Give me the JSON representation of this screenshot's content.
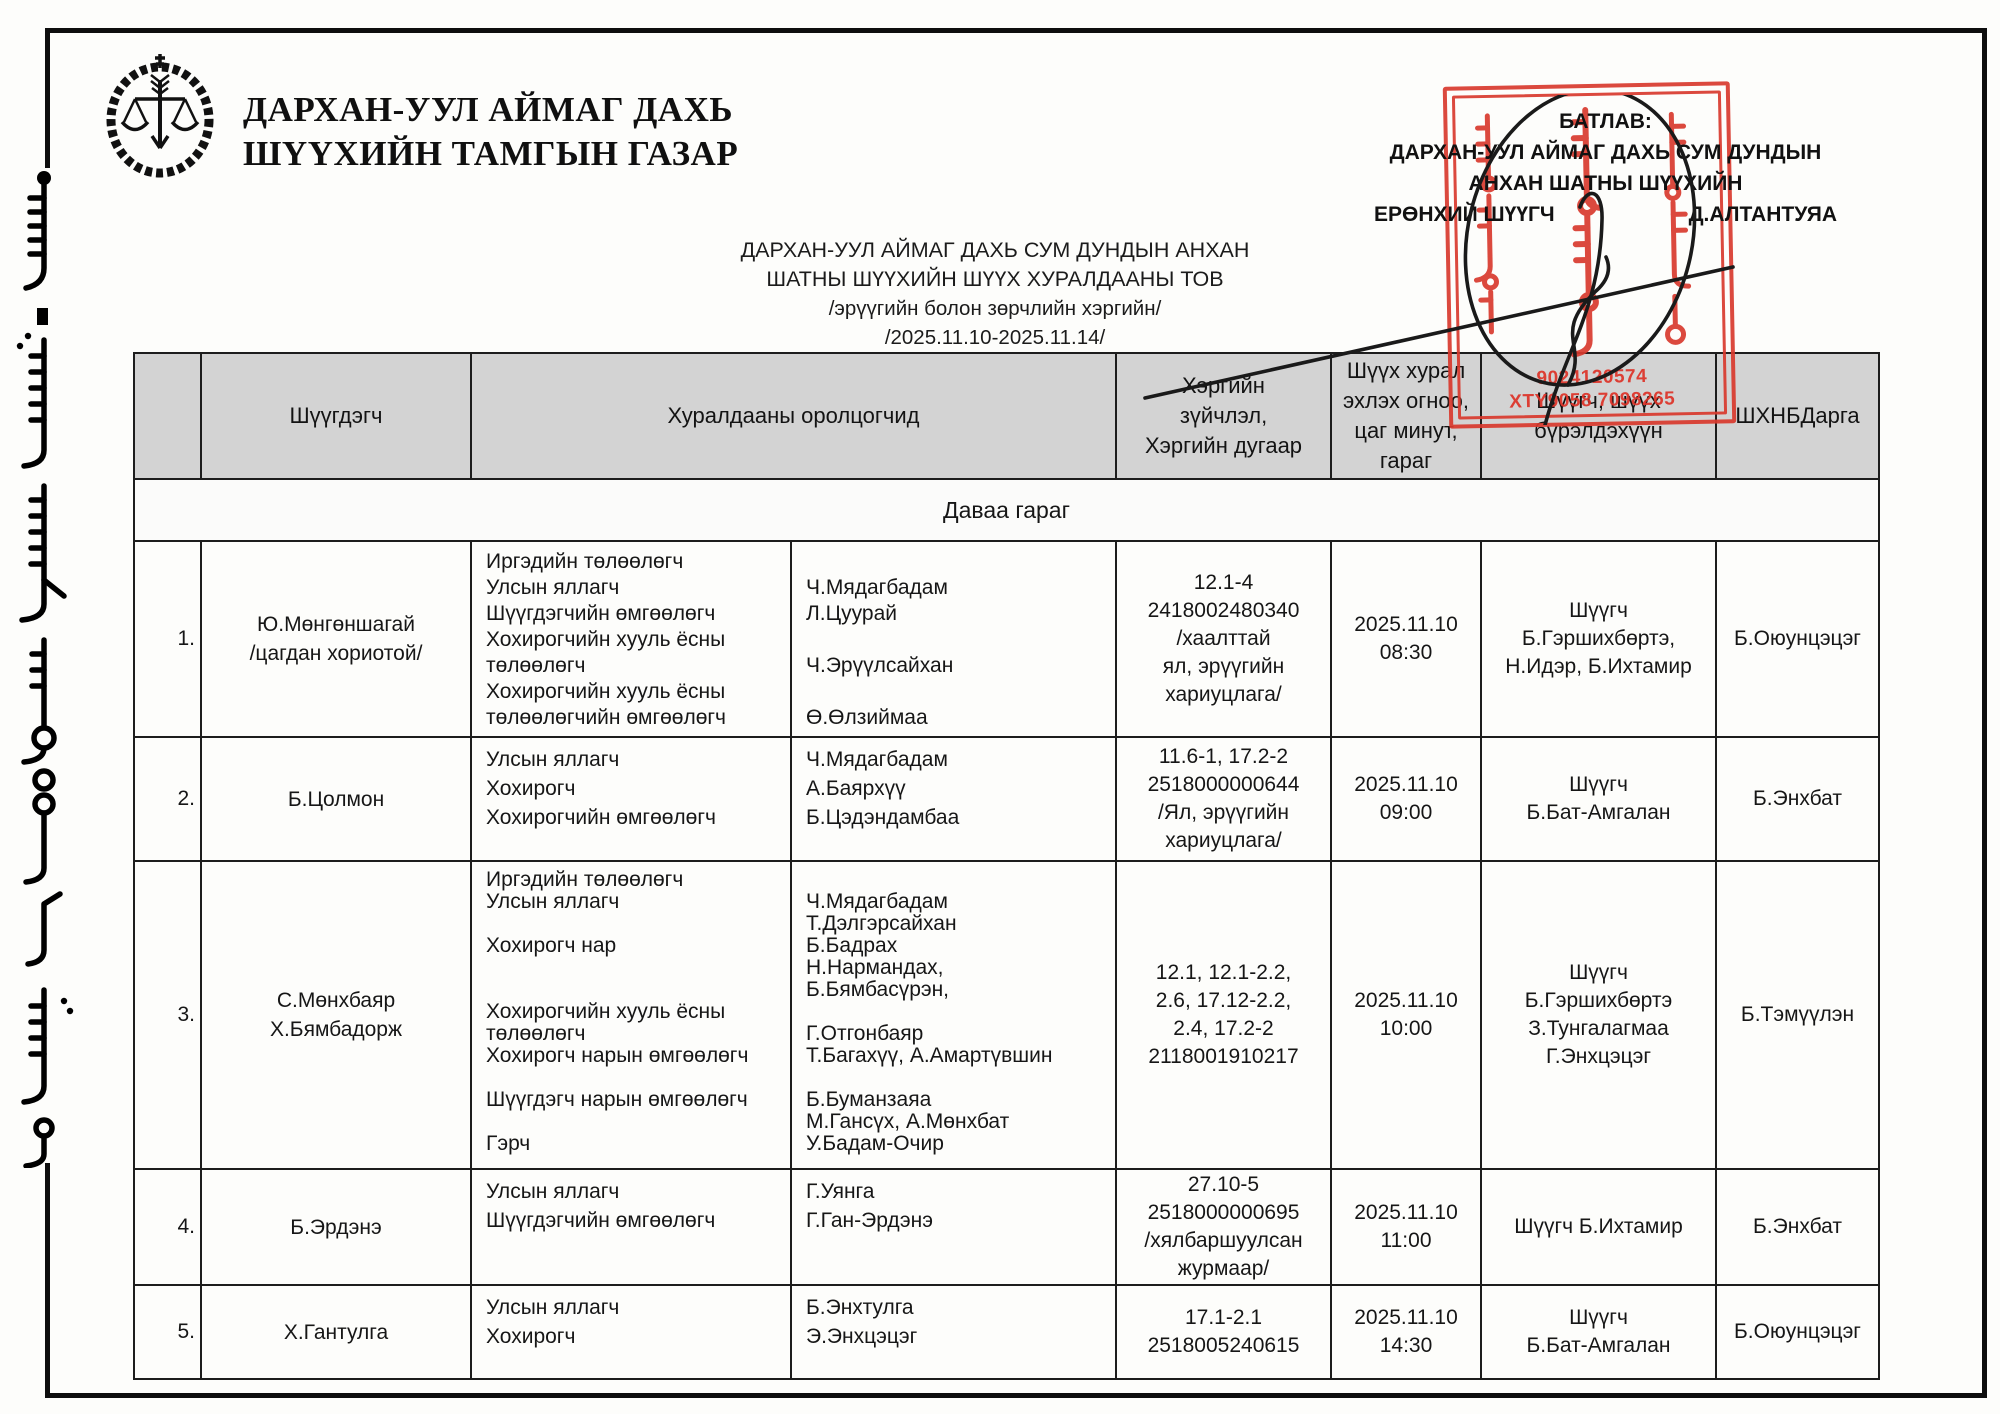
{
  "org": {
    "title": "ДАРХАН-УУЛ АЙМАГ ДАХЬ\nШҮҮХИЙН ТАМГЫН ГАЗАР"
  },
  "approval": {
    "label": "БАТЛАВ:",
    "line1": "ДАРХАН-УУЛ АЙМАГ ДАХЬ СУМ ДУНДЫН",
    "line2": "АНХАН ШАТНЫ ШҮҮХИЙН",
    "role": "ЕРӨНХИЙ ШҮҮГЧ",
    "name": "Д.АЛТАНТУЯА"
  },
  "stamp": {
    "numbers": "9024120574\nXTY9058   7098265",
    "color": "#d93a2e"
  },
  "doc_title": {
    "line1": "ДАРХАН-УУЛ АЙМАГ ДАХЬ СУМ ДУНДЫН АНХАН",
    "line2": "ШАТНЫ ШҮҮХИЙН ШҮҮХ ХУРАЛДААНЫ ТОВ",
    "line3": "/эрүүгийн болон зөрчлийн хэргийн/",
    "line4": "/2025.11.10-2025.11.14/"
  },
  "table": {
    "headers": {
      "no": "",
      "defendant": "Шүүгдэгч",
      "participants": "Хуралдааны оролцогчид",
      "case": "Хэргийн\nзүйчлэл,\nХэргийн дугаар",
      "datetime": "Шүүх хурал\nэхлэх огноо,\nцаг минут,\nгараг",
      "judges": "Шүүгч, шүүх\nбүрэлдэхүүн",
      "chief": "ШХНБДарга"
    },
    "day_band": "Даваа гараг",
    "rows": [
      {
        "no": "1.",
        "defendant": "Ю.Мөнгөншагай\n/цагдан хориотой/",
        "roles": "Иргэдийн төлөөлөгч\nУлсын яллагч\nШүүгдэгчийн өмгөөлөгч\nХохирогчийн хууль ёсны\nтөлөөлөгч\nХохирогчийн хууль ёсны\nтөлөөлөгчийн өмгөөлөгч",
        "names": "\nЧ.Мядагбадам\nЛ.Цуурай\n\nЧ.Эрүүлсайхан\n\nӨ.Өлзиймаа",
        "case": "12.1-4\n2418002480340\n/хаалттай\nял, эрүүгийн\nхариуцлага/",
        "datetime": "2025.11.10\n08:30",
        "judges": "Шүүгч\nБ.Гэршихбөртэ,\nН.Идэр, Б.Ихтамир",
        "secretary": "Б.Оюунцэцэг"
      },
      {
        "no": "2.",
        "defendant": "Б.Цолмон",
        "roles": "Улсын яллагч\nХохирогч\nХохирогчийн өмгөөлөгч",
        "names": "Ч.Мядагбадам\nА.Баярхүү\nБ.Цэдэндамбаа",
        "case": "11.6-1, 17.2-2\n2518000000644\n/Ял, эрүүгийн\nхариуцлага/",
        "datetime": "2025.11.10\n09:00",
        "judges": "Шүүгч\nБ.Бат-Амгалан",
        "secretary": "Б.Энхбат"
      },
      {
        "no": "3.",
        "defendant": "С.Мөнхбаяр\nХ.Бямбадорж",
        "roles": "Иргэдийн төлөөлөгч\nУлсын яллагч\n\nХохирогч нар\n\n\nХохирогчийн хууль ёсны\nтөлөөлөгч\nХохирогч нарын өмгөөлөгч\n\nШүүгдэгч нарын өмгөөлөгч\n\nГэрч",
        "names": "\nЧ.Мядагбадам\nТ.Дэлгэрсайхан\nБ.Бадрах\nН.Нармандах,\nБ.Бямбасүрэн,\n\nГ.Отгонбаяр\nТ.Багахүү, А.Амартүвшин\n\nБ.Буманзаяа\nМ.Гансүх, А.Мөнхбат\nУ.Бадам-Очир",
        "case": "12.1, 12.1-2.2,\n2.6, 17.12-2.2,\n2.4, 17.2-2\n2118001910217",
        "datetime": "2025.11.10\n10:00",
        "judges": "Шүүгч\nБ.Гэршихбөртэ\nЗ.Тунгалагмаа\nГ.Энхцэцэг",
        "secretary": "Б.Тэмүүлэн"
      },
      {
        "no": "4.",
        "defendant": "Б.Эрдэнэ",
        "roles": "Улсын яллагч\nШүүгдэгчийн өмгөөлөгч",
        "names": "Г.Уянга\nГ.Ган-Эрдэнэ",
        "case": "27.10-5\n2518000000695\n/хялбаршуулсан\nжурмаар/",
        "datetime": "2025.11.10\n11:00",
        "judges": "Шүүгч Б.Ихтамир",
        "secretary": "Б.Энхбат"
      },
      {
        "no": "5.",
        "defendant": "Х.Гантулга",
        "roles": "Улсын яллагч\nХохирогч",
        "names": "Б.Энхтулга\nЭ.Энхцэцэг",
        "case": "17.1-2.1\n2518005240615",
        "datetime": "2025.11.10\n14:30",
        "judges": "Шүүгч\nБ.Бат-Амгалан",
        "secretary": "Б.Оюунцэцэг"
      }
    ]
  }
}
